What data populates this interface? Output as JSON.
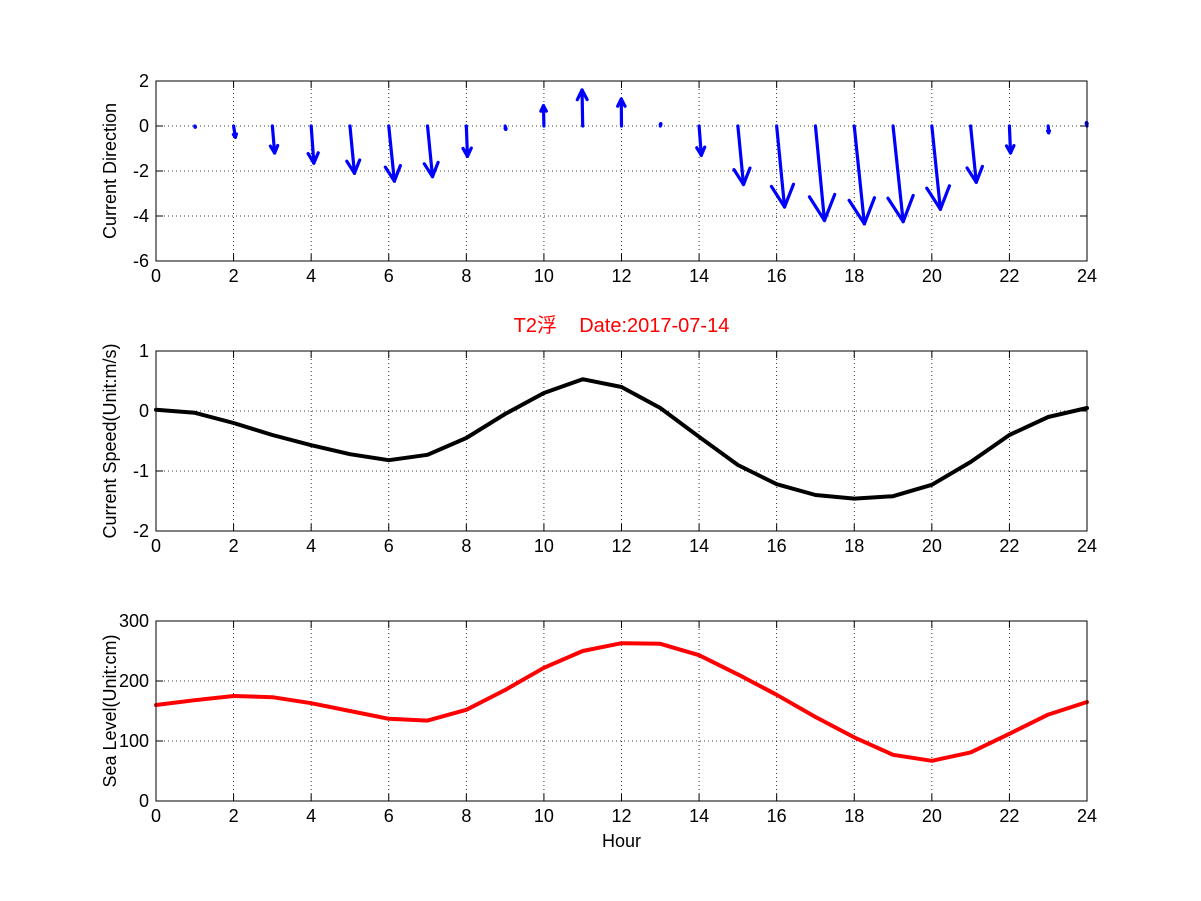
{
  "chart_data": [
    {
      "type": "quiver",
      "title": "",
      "xlabel": "",
      "ylabel": "Current Direction",
      "xlim": [
        0,
        24
      ],
      "ylim": [
        -6,
        2
      ],
      "xticks": [
        0,
        2,
        4,
        6,
        8,
        10,
        12,
        14,
        16,
        18,
        20,
        22,
        24
      ],
      "yticks": [
        -6,
        -4,
        -2,
        0,
        2
      ],
      "grid": true,
      "color": "#0000ff",
      "vectors": [
        {
          "x": 1,
          "u": 0.02,
          "v": -0.05
        },
        {
          "x": 2,
          "u": 0.08,
          "v": -0.5
        },
        {
          "x": 3,
          "u": 0.1,
          "v": -1.2
        },
        {
          "x": 4,
          "u": 0.12,
          "v": -1.65
        },
        {
          "x": 5,
          "u": 0.2,
          "v": -2.1
        },
        {
          "x": 6,
          "u": 0.25,
          "v": -2.45
        },
        {
          "x": 7,
          "u": 0.22,
          "v": -2.25
        },
        {
          "x": 8,
          "u": 0.05,
          "v": -1.35
        },
        {
          "x": 9,
          "u": 0.03,
          "v": -0.15
        },
        {
          "x": 10,
          "u": -0.02,
          "v": 0.9
        },
        {
          "x": 11,
          "u": -0.03,
          "v": 1.6
        },
        {
          "x": 12,
          "u": -0.01,
          "v": 1.2
        },
        {
          "x": 13,
          "u": 0.02,
          "v": 0.1
        },
        {
          "x": 14,
          "u": 0.1,
          "v": -1.3
        },
        {
          "x": 15,
          "u": 0.25,
          "v": -2.6
        },
        {
          "x": 16,
          "u": 0.35,
          "v": -3.6
        },
        {
          "x": 17,
          "u": 0.4,
          "v": -4.2
        },
        {
          "x": 18,
          "u": 0.45,
          "v": -4.35
        },
        {
          "x": 19,
          "u": 0.45,
          "v": -4.25
        },
        {
          "x": 20,
          "u": 0.38,
          "v": -3.7
        },
        {
          "x": 21,
          "u": 0.25,
          "v": -2.5
        },
        {
          "x": 22,
          "u": 0.05,
          "v": -1.2
        },
        {
          "x": 23,
          "u": 0.02,
          "v": -0.3
        },
        {
          "x": 24,
          "u": -0.02,
          "v": 0.15
        }
      ]
    },
    {
      "type": "line",
      "title": "T2浮    Date:2017-07-14",
      "title_color": "#ff0000",
      "xlabel": "",
      "ylabel": "Current Speed(Unit:m/s)",
      "xlim": [
        0,
        24
      ],
      "ylim": [
        -2,
        1
      ],
      "xticks": [
        0,
        2,
        4,
        6,
        8,
        10,
        12,
        14,
        16,
        18,
        20,
        22,
        24
      ],
      "yticks": [
        -2,
        -1,
        0,
        1
      ],
      "grid": true,
      "color": "#000000",
      "x": [
        0,
        1,
        2,
        3,
        4,
        5,
        6,
        7,
        8,
        9,
        10,
        11,
        12,
        13,
        14,
        15,
        16,
        17,
        18,
        19,
        20,
        21,
        22,
        23,
        24
      ],
      "y": [
        0.02,
        -0.03,
        -0.2,
        -0.4,
        -0.57,
        -0.72,
        -0.82,
        -0.73,
        -0.45,
        -0.05,
        0.3,
        0.53,
        0.4,
        0.05,
        -0.43,
        -0.9,
        -1.22,
        -1.4,
        -1.46,
        -1.42,
        -1.23,
        -0.85,
        -0.4,
        -0.1,
        0.05
      ]
    },
    {
      "type": "line",
      "title": "",
      "xlabel": "Hour",
      "ylabel": "Sea Level(Unit:cm)",
      "xlim": [
        0,
        24
      ],
      "ylim": [
        0,
        300
      ],
      "xticks": [
        0,
        2,
        4,
        6,
        8,
        10,
        12,
        14,
        16,
        18,
        20,
        22,
        24
      ],
      "yticks": [
        0,
        100,
        200,
        300
      ],
      "grid": true,
      "color": "#ff0000",
      "x": [
        0,
        1,
        2,
        3,
        4,
        5,
        6,
        7,
        8,
        9,
        10,
        11,
        12,
        13,
        14,
        15,
        16,
        17,
        18,
        19,
        20,
        21,
        22,
        23,
        24
      ],
      "y": [
        160,
        168,
        175,
        173,
        163,
        150,
        137,
        134,
        152,
        185,
        222,
        250,
        263,
        262,
        243,
        211,
        177,
        140,
        106,
        77,
        67,
        81,
        112,
        144,
        165
      ]
    }
  ]
}
